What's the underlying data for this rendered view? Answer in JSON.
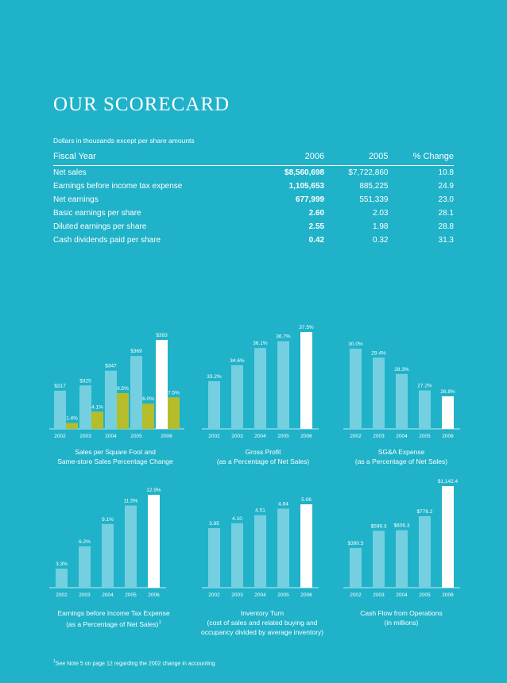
{
  "page": {
    "title": "OUR SCORECARD",
    "subtitle": "Dollars in thousands except per share amounts",
    "footnote_marker": "1",
    "footnote": "See Note 5 on page 12 regarding the 2002 change in accounting"
  },
  "table": {
    "headers": [
      "Fiscal Year",
      "2006",
      "2005",
      "% Change"
    ],
    "rows": [
      {
        "label": "Net sales",
        "y2006": "$8,560,698",
        "y2005": "$7,722,860",
        "change": "10.8"
      },
      {
        "label": "Earnings before income tax expense",
        "y2006": "1,105,653",
        "y2005": "885,225",
        "change": "24.9"
      },
      {
        "label": "Net earnings",
        "y2006": "677,999",
        "y2005": "551,339",
        "change": "23.0"
      },
      {
        "label": "Basic earnings per share",
        "y2006": "2.60",
        "y2005": "2.03",
        "change": "28.1"
      },
      {
        "label": "Diluted earnings per share",
        "y2006": "2.55",
        "y2005": "1.98",
        "change": "28.8"
      },
      {
        "label": "Cash dividends paid per share",
        "y2006": "0.42",
        "y2005": "0.32",
        "change": "31.3"
      }
    ]
  },
  "chart_data": [
    {
      "type": "bar",
      "title": "Sales per Square Foot and",
      "subtitle": "Same-store Sales Percentage Change",
      "categories": [
        "2002",
        "2003",
        "2004",
        "2005",
        "2006"
      ],
      "series": [
        {
          "values": [
            317,
            325,
            347,
            369,
            393
          ],
          "labels": [
            "$317",
            "$325",
            "$347",
            "$369",
            "$393"
          ]
        },
        {
          "values": [
            1.4,
            4.1,
            8.5,
            6.0,
            7.5
          ],
          "labels": [
            "1.4%",
            "4.1%",
            "8.5%",
            "6.0%",
            "7.5%"
          ]
        }
      ],
      "colors": {
        "bar": "#74d0e0",
        "highlight": "#ffffff",
        "second": "#b5be2a"
      }
    },
    {
      "type": "bar",
      "title": "Gross Profit",
      "subtitle": "(as a Percentage of Net Sales)",
      "categories": [
        "2002",
        "2003",
        "2004",
        "2005",
        "2006"
      ],
      "values": [
        33.2,
        34.6,
        36.1,
        36.7,
        37.5
      ],
      "labels": [
        "33.2%",
        "34.6%",
        "36.1%",
        "36.7%",
        "37.5%"
      ]
    },
    {
      "type": "bar",
      "title": "SG&A Expense",
      "subtitle": "(as a Percentage of Net Sales)",
      "categories": [
        "2002",
        "2003",
        "2004",
        "2005",
        "2006"
      ],
      "values": [
        30.0,
        29.4,
        28.3,
        27.2,
        26.8
      ],
      "labels": [
        "30.0%",
        "29.4%",
        "28.3%",
        "27.2%",
        "26.8%"
      ]
    },
    {
      "type": "bar",
      "title": "Earnings before Income Tax Expense",
      "subtitle": "(as a Percentage of Net Sales)",
      "subtitle_marker": "1",
      "categories": [
        "2002",
        "2003",
        "2004",
        "2005",
        "2006"
      ],
      "values": [
        3.3,
        6.2,
        9.1,
        11.5,
        12.9
      ],
      "labels": [
        "3.3%",
        "6.2%",
        "9.1%",
        "11.5%",
        "12.9%"
      ]
    },
    {
      "type": "bar",
      "title": "Inventory Turn",
      "subtitle": "(cost of sales and related buying and",
      "subtitle2": "occupancy divided by average inventory)",
      "categories": [
        "2002",
        "2003",
        "2004",
        "2005",
        "2006"
      ],
      "values": [
        3.85,
        4.1,
        4.51,
        4.84,
        5.06
      ],
      "labels": [
        "3.85",
        "4.10",
        "4.51",
        "4.84",
        "5.06"
      ]
    },
    {
      "type": "bar",
      "title": "Cash Flow from Operations",
      "subtitle": "(in millions)",
      "categories": [
        "2002",
        "2003",
        "2004",
        "2005",
        "2006"
      ],
      "values": [
        390.5,
        599.3,
        606.3,
        776.2,
        1142.4
      ],
      "labels": [
        "$390.5",
        "$599.3",
        "$606.3",
        "$776.2",
        "$1,142.4"
      ]
    }
  ]
}
